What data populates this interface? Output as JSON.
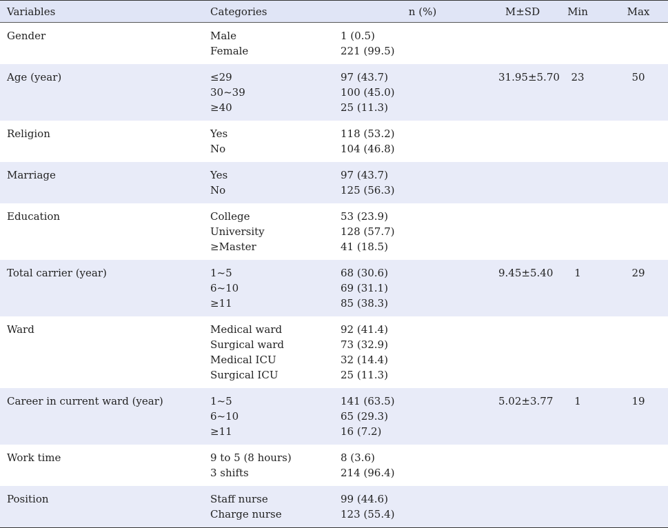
{
  "headers": {
    "variables": "Variables",
    "categories": "Categories",
    "n_percent": "n (%)",
    "m_sd": "M±SD",
    "min": "Min",
    "max": "Max"
  },
  "rows": [
    {
      "variable": "Gender",
      "categories": [
        "Male",
        "Female"
      ],
      "n": [
        "1 (0.5)",
        "221 (99.5)"
      ],
      "msd": "",
      "min": "",
      "max": ""
    },
    {
      "variable": "Age (year)",
      "categories": [
        "≤29",
        "30~39",
        "≥40"
      ],
      "n": [
        "97 (43.7)",
        "100 (45.0)",
        "25 (11.3)"
      ],
      "msd": "31.95±5.70",
      "min": "23",
      "max": "50"
    },
    {
      "variable": "Religion",
      "categories": [
        "Yes",
        "No"
      ],
      "n": [
        "118 (53.2)",
        "104 (46.8)"
      ],
      "msd": "",
      "min": "",
      "max": ""
    },
    {
      "variable": "Marriage",
      "categories": [
        "Yes",
        "No"
      ],
      "n": [
        "97 (43.7)",
        "125 (56.3)"
      ],
      "msd": "",
      "min": "",
      "max": ""
    },
    {
      "variable": "Education",
      "categories": [
        "College",
        "University",
        "≥Master"
      ],
      "n": [
        "53 (23.9)",
        "128 (57.7)",
        "41 (18.5)"
      ],
      "msd": "",
      "min": "",
      "max": ""
    },
    {
      "variable": "Total carrier (year)",
      "categories": [
        "1~5",
        "6~10",
        "≥11"
      ],
      "n": [
        "68 (30.6)",
        "69 (31.1)",
        "85 (38.3)"
      ],
      "msd": "9.45±5.40",
      "min": "1",
      "max": "29"
    },
    {
      "variable": "Ward",
      "categories": [
        "Medical ward",
        "Surgical ward",
        "Medical ICU",
        "Surgical ICU"
      ],
      "n": [
        "92 (41.4)",
        "73 (32.9)",
        "32 (14.4)",
        "25 (11.3)"
      ],
      "msd": "",
      "min": "",
      "max": ""
    },
    {
      "variable": "Career in current ward (year)",
      "categories": [
        "1~5",
        "6~10",
        "≥11"
      ],
      "n": [
        "141 (63.5)",
        "65 (29.3)",
        "16 (7.2)"
      ],
      "msd": "5.02±3.77",
      "min": "1",
      "max": "19"
    },
    {
      "variable": "Work time",
      "categories": [
        "9 to 5 (8 hours)",
        "3 shifts"
      ],
      "n": [
        "8 (3.6)",
        "214 (96.4)"
      ],
      "msd": "",
      "min": "",
      "max": ""
    },
    {
      "variable": "Position",
      "categories": [
        "Staff nurse",
        "Charge nurse"
      ],
      "n": [
        "99 (44.6)",
        "123 (55.4)"
      ],
      "msd": "",
      "min": "",
      "max": ""
    }
  ]
}
